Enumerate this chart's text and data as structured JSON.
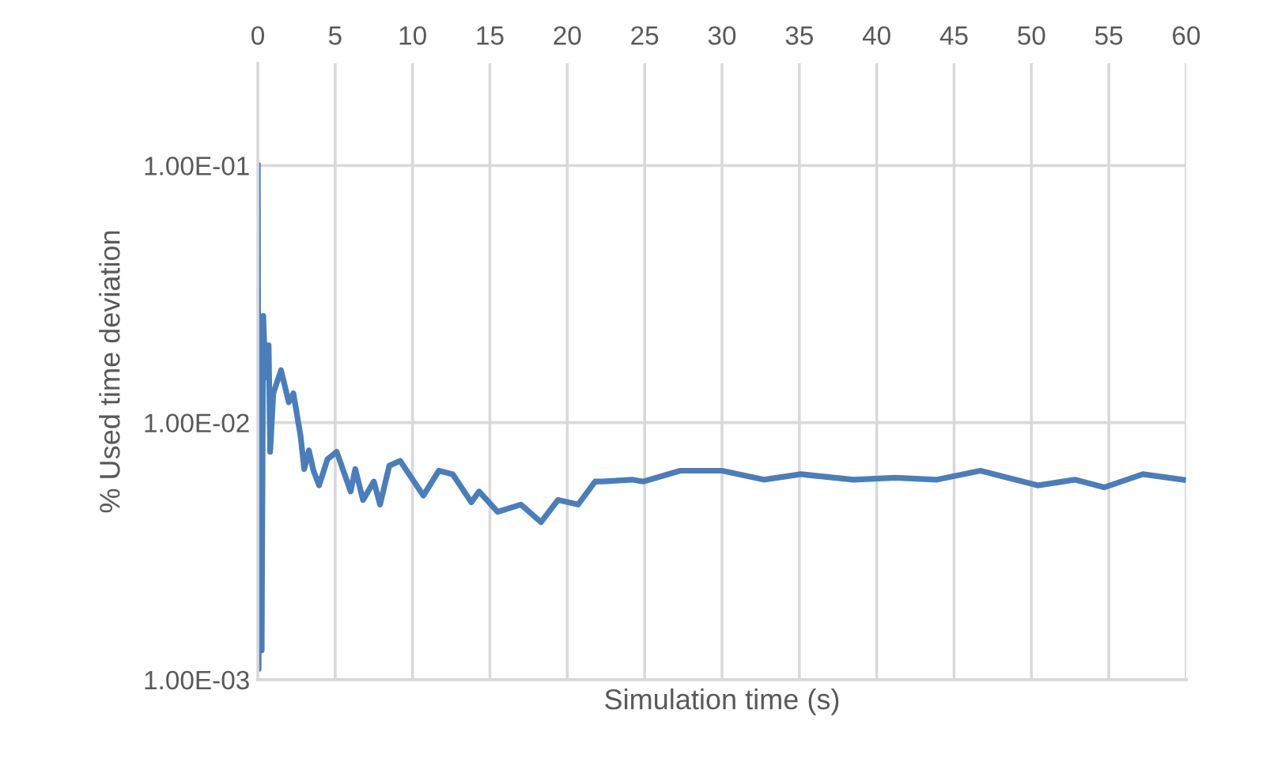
{
  "chart_data": {
    "type": "line",
    "xlabel": "Simulation time (s)",
    "ylabel": "% Used time deviation",
    "log": "y",
    "xlim": [
      0,
      60
    ],
    "xticks": [
      0,
      5,
      10,
      15,
      20,
      25,
      30,
      35,
      40,
      45,
      50,
      55,
      60
    ],
    "ylim": [
      0.001,
      0.25
    ],
    "yticks": [
      {
        "value": 0.001,
        "label": "1.00E-03"
      },
      {
        "value": 0.01,
        "label": "1.00E-02"
      },
      {
        "value": 0.1,
        "label": "1.00E-01"
      }
    ],
    "grid": true,
    "marker": "none",
    "line_style": "solid",
    "series": [
      {
        "color": "#4a7ebb",
        "x": [
          0,
          0.05,
          0.15,
          0.25,
          0.35,
          0.5,
          0.7,
          0.8,
          1.0,
          1.5,
          2.0,
          2.3,
          2.76,
          3.0,
          3.3,
          3.6,
          3.96,
          4.5,
          5.1,
          6.0,
          6.3,
          6.8,
          7.5,
          7.9,
          8.5,
          9.2,
          10.7,
          11.7,
          12.6,
          13.8,
          14.3,
          15.5,
          17.0,
          18.3,
          19.4,
          20.7,
          21.8,
          22.2,
          24.2,
          24.9,
          27.3,
          30.0,
          32.7,
          35.1,
          38.5,
          41.2,
          43.9,
          46.7,
          50.4,
          52.8,
          54.7,
          57.2,
          59.8
        ],
        "values": [
          0.1,
          0.0011,
          0.022,
          0.0013,
          0.026,
          0.015,
          0.02,
          0.0077,
          0.013,
          0.016,
          0.012,
          0.013,
          0.0089,
          0.0066,
          0.0078,
          0.0065,
          0.0057,
          0.0072,
          0.0077,
          0.0054,
          0.0066,
          0.005,
          0.0059,
          0.0048,
          0.0068,
          0.0071,
          0.0052,
          0.0065,
          0.0063,
          0.0049,
          0.0054,
          0.0045,
          0.0048,
          0.0041,
          0.005,
          0.0048,
          0.0059,
          0.0059,
          0.006,
          0.0059,
          0.0065,
          0.0065,
          0.006,
          0.0063,
          0.006,
          0.0061,
          0.006,
          0.0065,
          0.0057,
          0.006,
          0.0056,
          0.0063,
          0.006
        ]
      }
    ]
  }
}
